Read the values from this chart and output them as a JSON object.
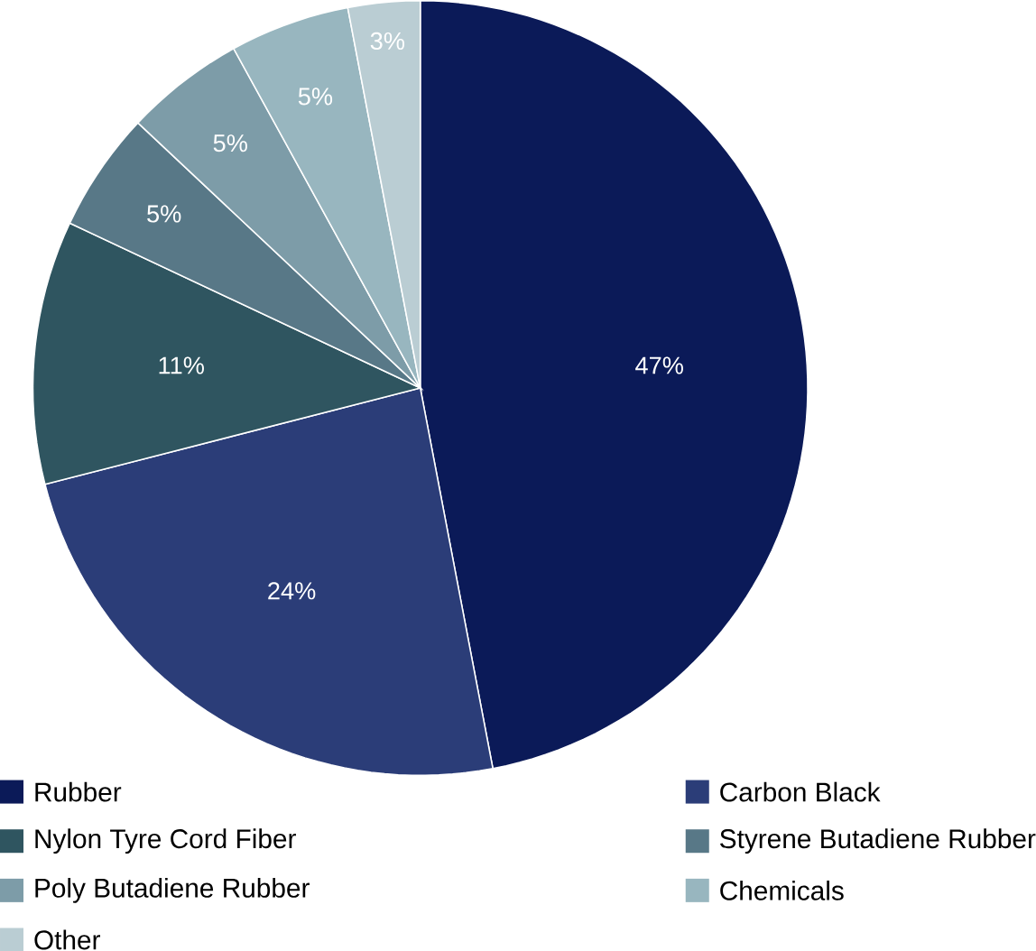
{
  "chart_data": {
    "type": "pie",
    "categories": [
      "Rubber",
      "Carbon Black",
      "Nylon Tyre Cord Fiber",
      "Styrene Butadiene Rubber",
      "Poly Butadiene Rubber",
      "Chemicals",
      "Other"
    ],
    "values": [
      47,
      24,
      11,
      5,
      5,
      5,
      3
    ],
    "value_labels": [
      "47%",
      "24%",
      "11%",
      "5%",
      "5%",
      "5%",
      "3%"
    ],
    "colors": [
      "#0b1a58",
      "#2b3d78",
      "#2f5560",
      "#587887",
      "#7d9ca8",
      "#98b6bf",
      "#bacdd3"
    ],
    "legend": "bottom"
  }
}
